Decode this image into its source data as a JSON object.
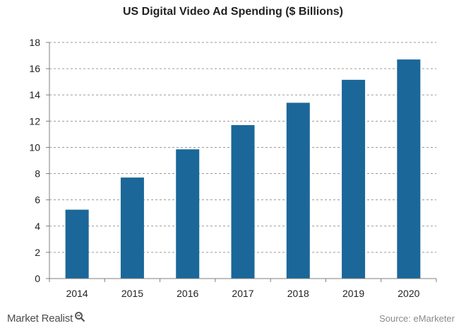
{
  "chart_data": {
    "type": "bar",
    "title": "US Digital Video Ad Spending ($ Billions)",
    "categories": [
      "2014",
      "2015",
      "2016",
      "2017",
      "2018",
      "2019",
      "2020"
    ],
    "values": [
      5.25,
      7.7,
      9.85,
      11.7,
      13.4,
      15.15,
      16.7
    ],
    "ylim": [
      0,
      18
    ],
    "yticks": [
      "0",
      "2",
      "4",
      "6",
      "8",
      "10",
      "12",
      "14",
      "16",
      "18"
    ],
    "grid": true,
    "bar_color": "#1b6799"
  },
  "footer": {
    "brand": "Market Realist",
    "source": "Source: eMarketer"
  }
}
